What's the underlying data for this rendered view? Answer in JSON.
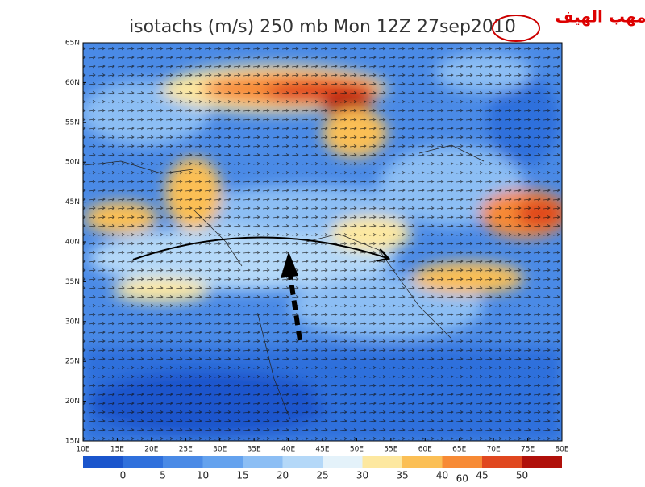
{
  "header": {
    "title": "isotachs (m/s) 250 mb Mon 12Z 27sep2010",
    "annotation": "مهب الهيف"
  },
  "map": {
    "latitude_labels": [
      "15N",
      "20N",
      "25N",
      "30N",
      "35N",
      "40N",
      "45N",
      "50N",
      "55N",
      "60N",
      "65N"
    ],
    "longitude_labels": [
      "10E",
      "15E",
      "20E",
      "25E",
      "30E",
      "35E",
      "40E",
      "45E",
      "50E",
      "55E",
      "60E",
      "65E",
      "70E",
      "75E",
      "80E"
    ]
  },
  "colorbar": {
    "labels": [
      0,
      5,
      10,
      15,
      20,
      25,
      30,
      35,
      40,
      45,
      50
    ],
    "extra_label": "60",
    "colors": [
      "#1a55cc",
      "#2f70dc",
      "#4a8ae6",
      "#64a2ee",
      "#8cbef4",
      "#b4d8f8",
      "#e4f2fa",
      "#fde8a0",
      "#fbbf55",
      "#f78a35",
      "#e0471f",
      "#b0100a"
    ]
  }
}
